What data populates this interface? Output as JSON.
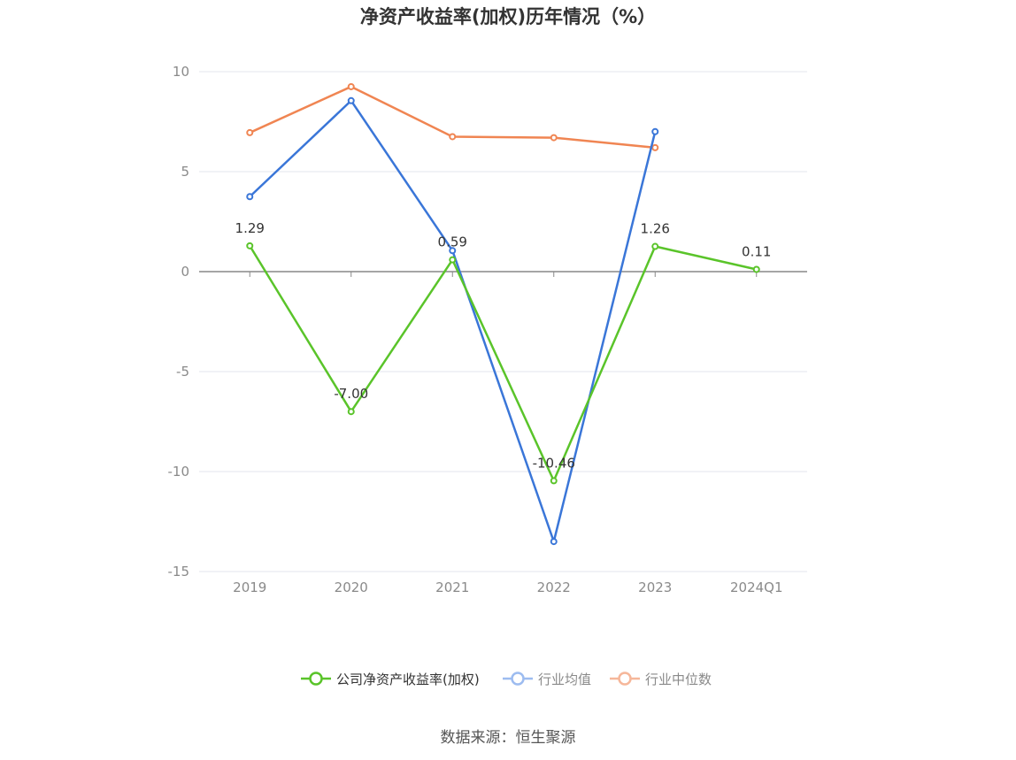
{
  "chart_data": {
    "type": "line",
    "title": "净资产收益率(加权)历年情况（%）",
    "categories": [
      "2019",
      "2020",
      "2021",
      "2022",
      "2023",
      "2024Q1"
    ],
    "ylim": [
      -15,
      10
    ],
    "yticks": [
      10,
      5,
      0,
      -5,
      -10,
      -15
    ],
    "grid": true,
    "legend_position": "bottom",
    "series": [
      {
        "name": "公司净资产收益率(加权)",
        "color": "#5ac42a",
        "values": [
          1.29,
          -7.0,
          0.59,
          -10.46,
          1.26,
          0.11
        ],
        "labels": [
          "1.29",
          "-7.00",
          "0.59",
          "-10.46",
          "1.26",
          "0.11"
        ]
      },
      {
        "name": "行业均值",
        "color": "#3a76d8",
        "values": [
          3.75,
          8.55,
          1.05,
          -13.5,
          7.0,
          null
        ]
      },
      {
        "name": "行业中位数",
        "color": "#f08552",
        "values": [
          6.95,
          9.25,
          6.75,
          6.7,
          6.2,
          null
        ]
      }
    ]
  },
  "legend": {
    "colors": {
      "active": "#5ac42a",
      "muted1": "#9dbcf0",
      "muted2": "#f6b79a"
    }
  },
  "source": "数据来源：恒生聚源"
}
